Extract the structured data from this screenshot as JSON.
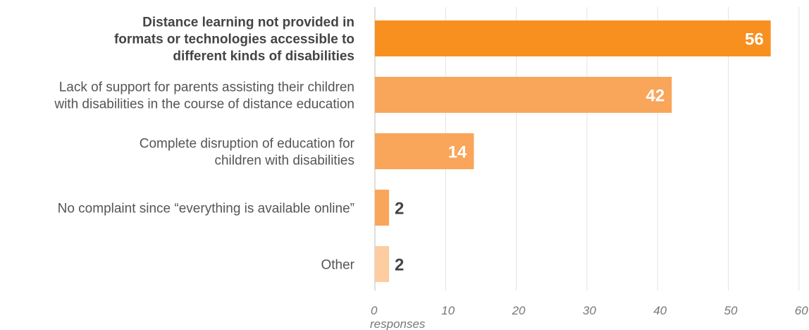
{
  "chart_data": {
    "type": "bar",
    "orientation": "horizontal",
    "categories": [
      "Distance learning not provided in formats or technologies accessible to different kinds of disabilities",
      "Lack of support for parents assisting their children with disabilities in the course of distance education",
      "Complete disruption of education for children with disabilities",
      "No complaint since “everything is available online”",
      "Other"
    ],
    "category_lines": [
      [
        "Distance learning not provided in",
        "formats or technologies accessible to",
        "different kinds of disabilities"
      ],
      [
        "Lack of support for parents assisting their children",
        "with disabilities in the course of distance education"
      ],
      [
        "Complete disruption of education for",
        "children with disabilities"
      ],
      [
        "No complaint since “everything is available online”"
      ],
      [
        "Other"
      ]
    ],
    "values": [
      56,
      42,
      14,
      2,
      2
    ],
    "bar_colors": [
      "#f7901e",
      "#f9a55a",
      "#f9a55a",
      "#f9a55a",
      "#fdcc9f"
    ],
    "highlight_index": 0,
    "xlabel": "responses",
    "xlim": [
      0,
      60
    ],
    "xticks": [
      "0",
      "10",
      "20",
      "30",
      "40",
      "50",
      "60"
    ],
    "grid": true
  }
}
